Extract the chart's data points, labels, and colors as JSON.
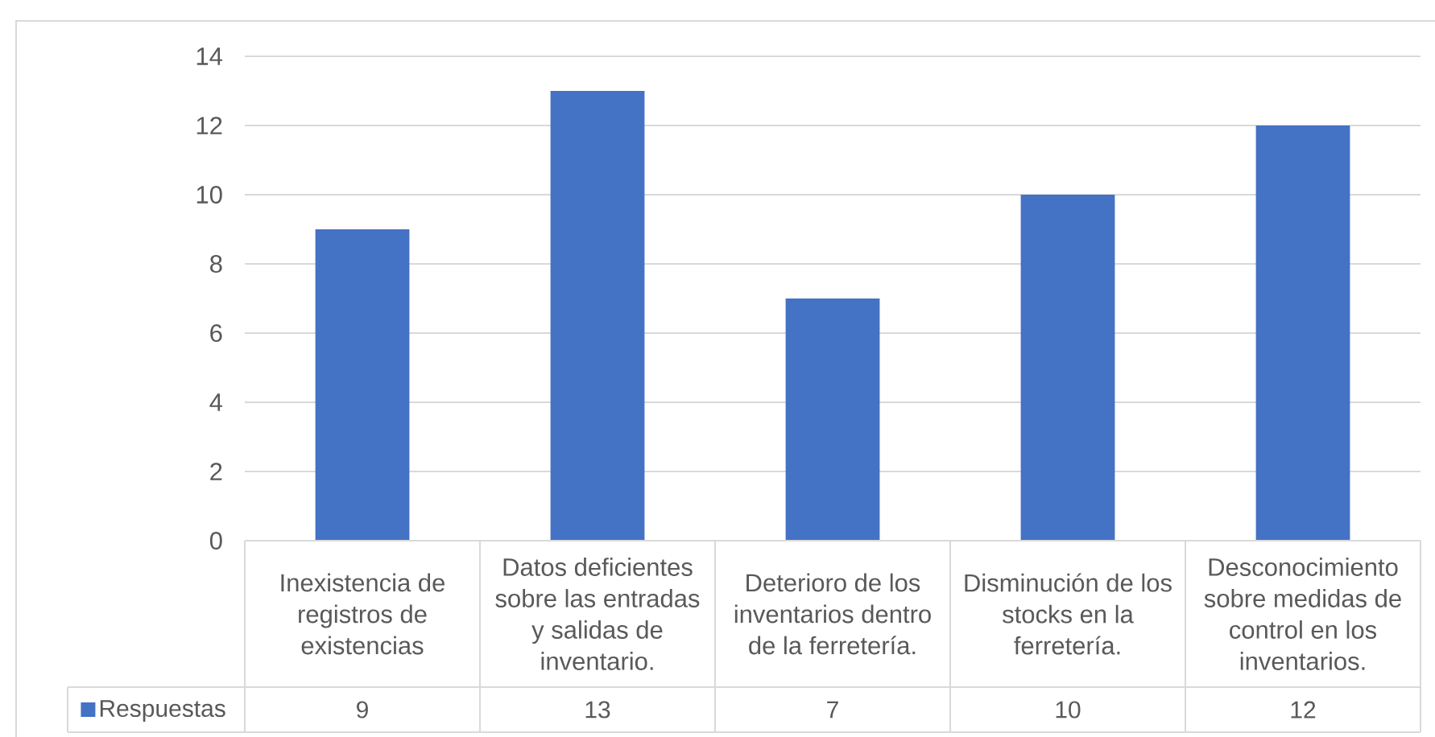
{
  "chart_data": {
    "type": "bar",
    "categories": [
      "Inexistencia de registros de existencias",
      "Datos deficientes sobre las entradas y salidas de inventario.",
      "Deterioro de los inventarios dentro de la ferretería.",
      "Disminución de los stocks en la ferretería.",
      "Desconocimiento sobre medidas de control en los inventarios."
    ],
    "series": [
      {
        "name": "Respuestas",
        "color": "#4472c4",
        "values": [
          9,
          13,
          7,
          10,
          12
        ]
      }
    ],
    "ylim": [
      0,
      14
    ],
    "yticks": [
      0,
      2,
      4,
      6,
      8,
      10,
      12,
      14
    ],
    "grid": "y",
    "legend": "bottom left",
    "data_labels": true
  }
}
